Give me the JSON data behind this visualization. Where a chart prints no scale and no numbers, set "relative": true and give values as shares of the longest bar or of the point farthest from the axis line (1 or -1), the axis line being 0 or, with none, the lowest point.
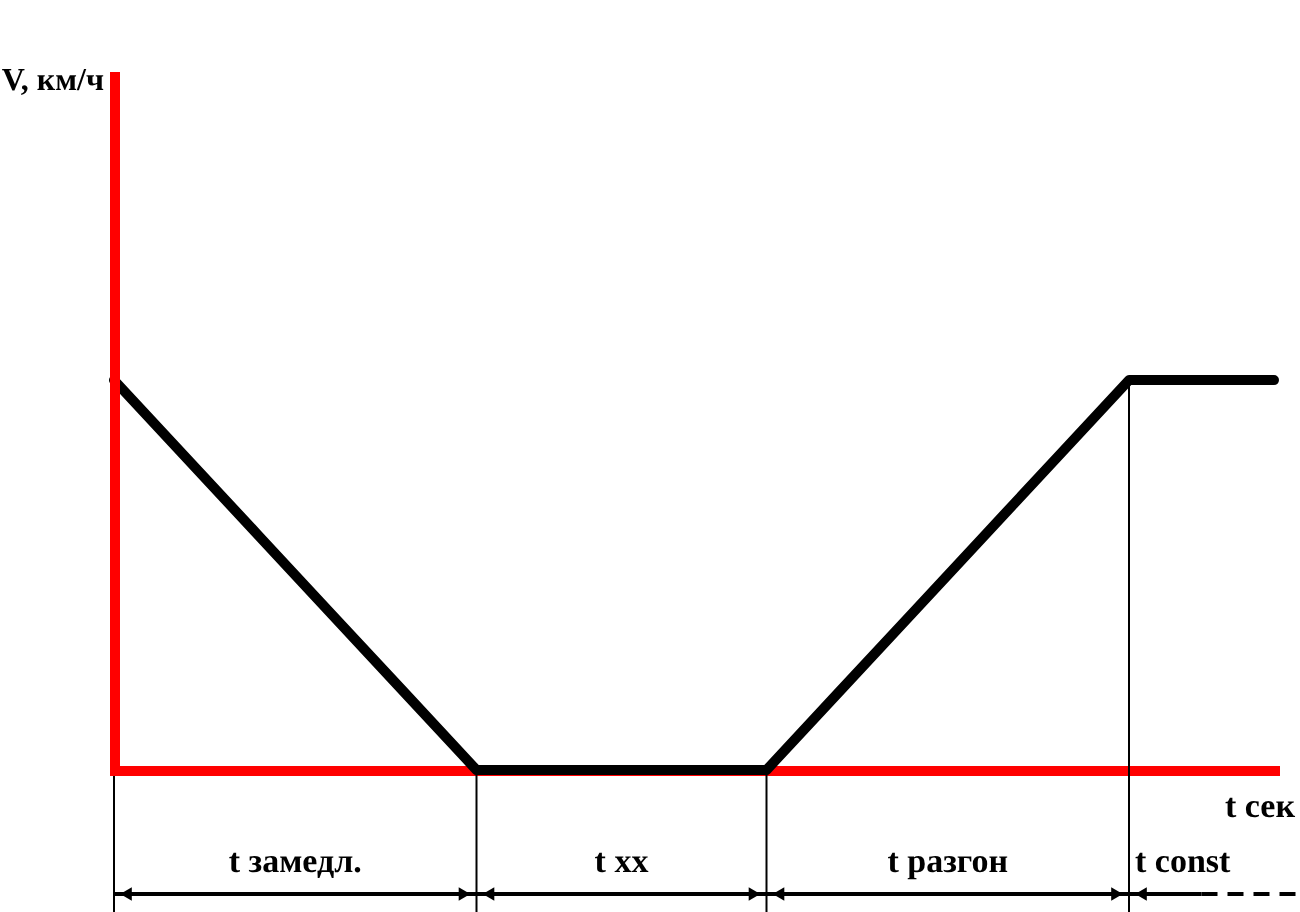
{
  "chart_data": {
    "type": "line",
    "xlabel": "t сек",
    "relative": true,
    "categories": [
      null,
      null,
      null,
      null,
      null,
      null,
      null,
      null,
      null,
      null,
      null,
      null,
      null,
      null,
      null,
      null,
      null
    ],
    "series": [
      {
        "color": "#000000",
        "values": [
          1,
          0.8,
          0.6,
          0.4,
          0.2,
          0,
          0,
          0,
          0,
          0,
          0.2,
          0.4,
          0.6,
          0.8,
          1,
          1,
          1
        ]
      }
    ],
    "annotations": [
      "V, км/ч",
      "t замедл.",
      "t хх",
      "t разгон",
      "t const"
    ]
  }
}
